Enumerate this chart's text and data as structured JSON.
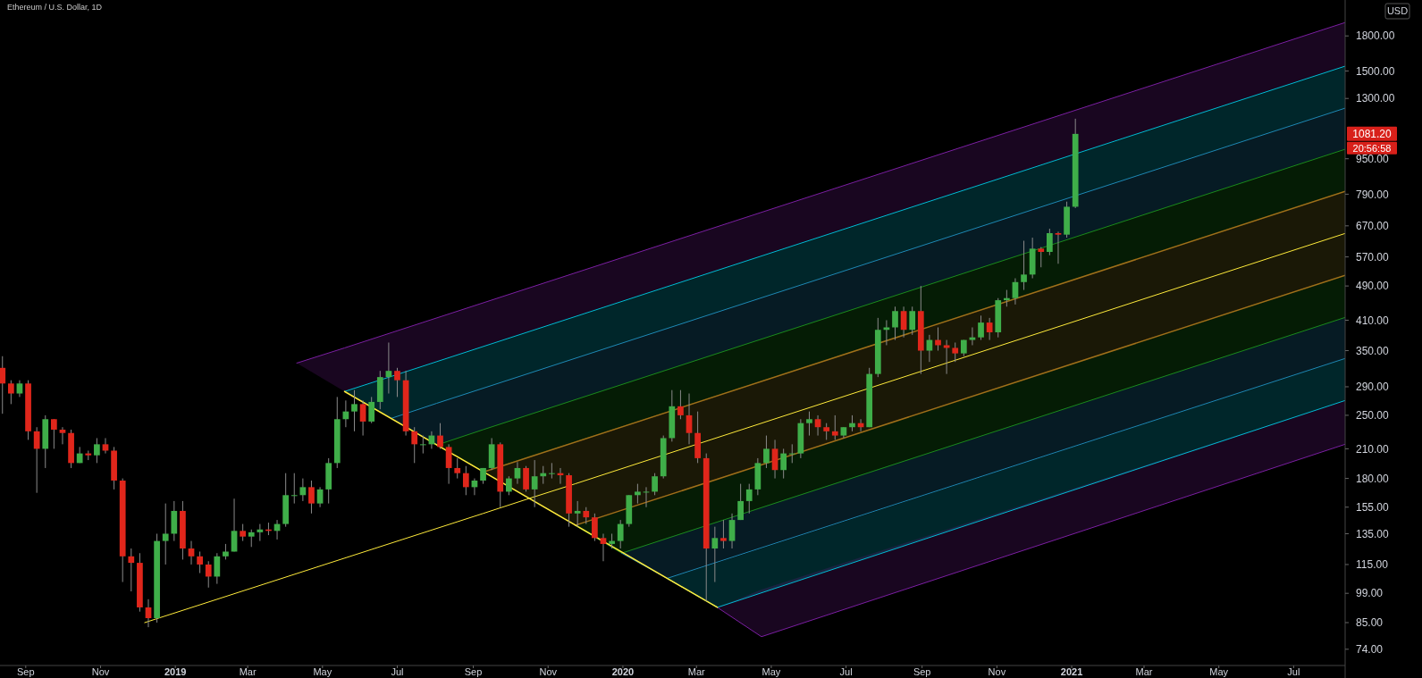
{
  "chart_data": {
    "type": "candlestick",
    "title": "Ethereum / U.S. Dollar, 1D",
    "log": true,
    "xlim": [
      "2018-08-11",
      "2021-08-12"
    ],
    "ylim": [
      68,
      2170
    ],
    "xticks": [
      {
        "value": "2018-09-01",
        "label": "Sep"
      },
      {
        "value": "2018-11-01",
        "label": "Nov"
      },
      {
        "value": "2019-01-01",
        "label": "2019"
      },
      {
        "value": "2019-03-01",
        "label": "Mar"
      },
      {
        "value": "2019-05-01",
        "label": "May"
      },
      {
        "value": "2019-07-01",
        "label": "Jul"
      },
      {
        "value": "2019-09-01",
        "label": "Sep"
      },
      {
        "value": "2019-11-01",
        "label": "Nov"
      },
      {
        "value": "2020-01-01",
        "label": "2020"
      },
      {
        "value": "2020-03-01",
        "label": "Mar"
      },
      {
        "value": "2020-05-01",
        "label": "May"
      },
      {
        "value": "2020-07-01",
        "label": "Jul"
      },
      {
        "value": "2020-09-01",
        "label": "Sep"
      },
      {
        "value": "2020-11-01",
        "label": "Nov"
      },
      {
        "value": "2021-01-01",
        "label": "2021"
      },
      {
        "value": "2021-03-01",
        "label": "Mar"
      },
      {
        "value": "2021-05-01",
        "label": "May"
      },
      {
        "value": "2021-07-01",
        "label": "Jul"
      }
    ],
    "yticks": [
      {
        "value": 74,
        "label": "74.00"
      },
      {
        "value": 85,
        "label": "85.00"
      },
      {
        "value": 99,
        "label": "99.00"
      },
      {
        "value": 115,
        "label": "115.00"
      },
      {
        "value": 135,
        "label": "135.00"
      },
      {
        "value": 155,
        "label": "155.00"
      },
      {
        "value": 180,
        "label": "180.00"
      },
      {
        "value": 210,
        "label": "210.00"
      },
      {
        "value": 250,
        "label": "250.00"
      },
      {
        "value": 290,
        "label": "290.00"
      },
      {
        "value": 350,
        "label": "350.00"
      },
      {
        "value": 410,
        "label": "410.00"
      },
      {
        "value": 490,
        "label": "490.00"
      },
      {
        "value": 570,
        "label": "570.00"
      },
      {
        "value": 670,
        "label": "670.00"
      },
      {
        "value": 790,
        "label": "790.00"
      },
      {
        "value": 950,
        "label": "950.00"
      },
      {
        "value": 1300,
        "label": "1300.00"
      },
      {
        "value": 1500,
        "label": "1500.00"
      },
      {
        "value": 1800,
        "label": "1800.00"
      }
    ],
    "x": [
      "2018-08-13",
      "2018-08-20",
      "2018-08-27",
      "2018-09-03",
      "2018-09-10",
      "2018-09-17",
      "2018-09-24",
      "2018-10-01",
      "2018-10-08",
      "2018-10-15",
      "2018-10-22",
      "2018-10-29",
      "2018-11-05",
      "2018-11-12",
      "2018-11-19",
      "2018-11-26",
      "2018-12-03",
      "2018-12-10",
      "2018-12-17",
      "2018-12-24",
      "2018-12-31",
      "2019-01-07",
      "2019-01-14",
      "2019-01-21",
      "2019-01-28",
      "2019-02-04",
      "2019-02-11",
      "2019-02-18",
      "2019-02-25",
      "2019-03-04",
      "2019-03-11",
      "2019-03-18",
      "2019-03-25",
      "2019-04-01",
      "2019-04-08",
      "2019-04-15",
      "2019-04-22",
      "2019-04-29",
      "2019-05-06",
      "2019-05-13",
      "2019-05-20",
      "2019-05-27",
      "2019-06-03",
      "2019-06-10",
      "2019-06-17",
      "2019-06-24",
      "2019-07-01",
      "2019-07-08",
      "2019-07-15",
      "2019-07-22",
      "2019-07-29",
      "2019-08-05",
      "2019-08-12",
      "2019-08-19",
      "2019-08-26",
      "2019-09-02",
      "2019-09-09",
      "2019-09-16",
      "2019-09-23",
      "2019-09-30",
      "2019-10-07",
      "2019-10-14",
      "2019-10-21",
      "2019-10-28",
      "2019-11-04",
      "2019-11-11",
      "2019-11-18",
      "2019-11-25",
      "2019-12-02",
      "2019-12-09",
      "2019-12-16",
      "2019-12-23",
      "2019-12-30",
      "2020-01-06",
      "2020-01-13",
      "2020-01-20",
      "2020-01-27",
      "2020-02-03",
      "2020-02-10",
      "2020-02-17",
      "2020-02-24",
      "2020-03-02",
      "2020-03-09",
      "2020-03-16",
      "2020-03-23",
      "2020-03-30",
      "2020-04-06",
      "2020-04-13",
      "2020-04-20",
      "2020-04-27",
      "2020-05-04",
      "2020-05-11",
      "2020-05-18",
      "2020-05-25",
      "2020-06-01",
      "2020-06-08",
      "2020-06-15",
      "2020-06-22",
      "2020-06-29",
      "2020-07-06",
      "2020-07-13",
      "2020-07-20",
      "2020-07-27",
      "2020-08-03",
      "2020-08-10",
      "2020-08-17",
      "2020-08-24",
      "2020-08-31",
      "2020-09-07",
      "2020-09-14",
      "2020-09-21",
      "2020-09-28",
      "2020-10-05",
      "2020-10-12",
      "2020-10-19",
      "2020-10-26",
      "2020-11-02",
      "2020-11-09",
      "2020-11-16",
      "2020-11-23",
      "2020-11-30",
      "2020-12-07",
      "2020-12-14",
      "2020-12-21",
      "2020-12-28",
      "2021-01-04"
    ],
    "ohlc": [
      [
        320,
        340,
        252,
        295
      ],
      [
        295,
        300,
        265,
        280
      ],
      [
        280,
        300,
        275,
        295
      ],
      [
        295,
        300,
        220,
        230
      ],
      [
        230,
        235,
        167,
        210
      ],
      [
        210,
        250,
        190,
        245
      ],
      [
        245,
        245,
        210,
        232
      ],
      [
        232,
        235,
        215,
        228
      ],
      [
        228,
        232,
        190,
        195
      ],
      [
        195,
        212,
        195,
        205
      ],
      [
        205,
        208,
        198,
        203
      ],
      [
        203,
        222,
        195,
        215
      ],
      [
        215,
        222,
        205,
        208
      ],
      [
        208,
        212,
        170,
        178
      ],
      [
        178,
        180,
        105,
        120
      ],
      [
        120,
        125,
        100,
        116
      ],
      [
        116,
        122,
        90,
        92
      ],
      [
        92,
        96,
        83,
        87
      ],
      [
        87,
        135,
        85,
        130
      ],
      [
        130,
        158,
        115,
        135
      ],
      [
        135,
        160,
        130,
        152
      ],
      [
        152,
        160,
        118,
        125
      ],
      [
        125,
        130,
        115,
        120
      ],
      [
        120,
        123,
        110,
        115
      ],
      [
        115,
        117,
        102,
        108
      ],
      [
        108,
        122,
        104,
        120
      ],
      [
        120,
        128,
        118,
        123
      ],
      [
        123,
        162,
        123,
        137
      ],
      [
        137,
        142,
        130,
        133
      ],
      [
        133,
        138,
        126,
        136
      ],
      [
        136,
        142,
        130,
        138
      ],
      [
        138,
        143,
        134,
        137
      ],
      [
        137,
        145,
        131,
        142
      ],
      [
        142,
        185,
        140,
        165
      ],
      [
        165,
        185,
        158,
        165
      ],
      [
        165,
        180,
        160,
        172
      ],
      [
        172,
        178,
        150,
        158
      ],
      [
        158,
        172,
        155,
        170
      ],
      [
        170,
        200,
        158,
        195
      ],
      [
        195,
        275,
        190,
        245
      ],
      [
        245,
        270,
        235,
        255
      ],
      [
        255,
        285,
        230,
        265
      ],
      [
        265,
        270,
        225,
        242
      ],
      [
        242,
        275,
        240,
        268
      ],
      [
        268,
        315,
        258,
        305
      ],
      [
        305,
        365,
        280,
        315
      ],
      [
        315,
        320,
        275,
        300
      ],
      [
        300,
        315,
        225,
        230
      ],
      [
        230,
        235,
        195,
        215
      ],
      [
        215,
        225,
        205,
        215
      ],
      [
        215,
        230,
        210,
        225
      ],
      [
        225,
        240,
        210,
        212
      ],
      [
        212,
        215,
        175,
        190
      ],
      [
        190,
        200,
        180,
        185
      ],
      [
        185,
        192,
        165,
        172
      ],
      [
        172,
        180,
        165,
        178
      ],
      [
        178,
        190,
        175,
        190
      ],
      [
        190,
        222,
        188,
        215
      ],
      [
        215,
        217,
        155,
        168
      ],
      [
        168,
        182,
        165,
        180
      ],
      [
        180,
        196,
        175,
        190
      ],
      [
        190,
        192,
        168,
        170
      ],
      [
        170,
        198,
        155,
        182
      ],
      [
        182,
        192,
        175,
        185
      ],
      [
        185,
        195,
        180,
        185
      ],
      [
        185,
        190,
        175,
        183
      ],
      [
        183,
        185,
        140,
        150
      ],
      [
        150,
        160,
        140,
        152
      ],
      [
        152,
        155,
        142,
        147
      ],
      [
        147,
        150,
        130,
        132
      ],
      [
        132,
        135,
        117,
        128
      ],
      [
        128,
        135,
        125,
        130
      ],
      [
        130,
        145,
        125,
        142
      ],
      [
        142,
        165,
        140,
        165
      ],
      [
        165,
        175,
        158,
        168
      ],
      [
        168,
        172,
        155,
        168
      ],
      [
        168,
        185,
        165,
        182
      ],
      [
        182,
        225,
        180,
        222
      ],
      [
        222,
        285,
        218,
        262
      ],
      [
        262,
        285,
        245,
        250
      ],
      [
        250,
        280,
        215,
        228
      ],
      [
        228,
        255,
        195,
        200
      ],
      [
        200,
        205,
        95,
        125
      ],
      [
        125,
        140,
        105,
        132
      ],
      [
        132,
        145,
        125,
        130
      ],
      [
        130,
        150,
        125,
        145
      ],
      [
        145,
        175,
        145,
        160
      ],
      [
        160,
        175,
        150,
        170
      ],
      [
        170,
        200,
        165,
        195
      ],
      [
        195,
        225,
        190,
        210
      ],
      [
        210,
        220,
        180,
        188
      ],
      [
        188,
        210,
        180,
        205
      ],
      [
        205,
        215,
        195,
        205
      ],
      [
        205,
        245,
        200,
        240
      ],
      [
        240,
        255,
        225,
        245
      ],
      [
        245,
        250,
        225,
        235
      ],
      [
        235,
        240,
        220,
        230
      ],
      [
        230,
        250,
        220,
        225
      ],
      [
        225,
        235,
        222,
        235
      ],
      [
        235,
        250,
        230,
        240
      ],
      [
        240,
        245,
        230,
        235
      ],
      [
        235,
        320,
        235,
        310
      ],
      [
        310,
        415,
        305,
        390
      ],
      [
        390,
        410,
        360,
        395
      ],
      [
        395,
        440,
        370,
        430
      ],
      [
        430,
        440,
        375,
        390
      ],
      [
        390,
        440,
        380,
        430
      ],
      [
        430,
        490,
        310,
        350
      ],
      [
        350,
        380,
        330,
        370
      ],
      [
        370,
        395,
        350,
        360
      ],
      [
        360,
        370,
        310,
        355
      ],
      [
        355,
        365,
        330,
        345
      ],
      [
        345,
        370,
        340,
        370
      ],
      [
        370,
        395,
        360,
        375
      ],
      [
        375,
        420,
        370,
        405
      ],
      [
        405,
        415,
        370,
        385
      ],
      [
        385,
        460,
        375,
        455
      ],
      [
        455,
        480,
        440,
        460
      ],
      [
        460,
        510,
        445,
        500
      ],
      [
        500,
        620,
        480,
        520
      ],
      [
        520,
        630,
        510,
        595
      ],
      [
        595,
        600,
        540,
        585
      ],
      [
        585,
        660,
        575,
        645
      ],
      [
        645,
        650,
        550,
        640
      ],
      [
        640,
        760,
        630,
        740
      ],
      [
        740,
        1170,
        735,
        1081.2
      ]
    ],
    "series": [
      {
        "type": "line",
        "color": "#7b1fa2",
        "x": [
          "2019-04-10",
          "2019-05-19",
          "2021-08-12"
        ],
        "values": [
          328,
          355,
          1930
        ],
        "upper": [
          328,
          355,
          1930
        ],
        "lower": [
          328,
          283,
          1538
        ]
      },
      {
        "type": "line",
        "color": "#00bcd4",
        "x": [
          "2019-05-19",
          "2019-06-26",
          "2021-08-12"
        ],
        "values": [
          283,
          306,
          1538
        ],
        "upper": [
          283,
          306,
          1538
        ],
        "lower": [
          283,
          246,
          1236
        ]
      },
      {
        "type": "line",
        "color": "#1e88b4",
        "x": [
          "2019-06-26",
          "2019-08-02",
          "2021-08-12"
        ],
        "values": [
          246,
          266,
          1236
        ],
        "upper": [
          246,
          266,
          1236
        ],
        "lower": [
          246,
          214,
          998
        ]
      },
      {
        "type": "line",
        "color": "#1b8a1b",
        "x": [
          "2019-08-02",
          "2019-09-09",
          "2021-08-12"
        ],
        "values": [
          214,
          232,
          998
        ],
        "upper": [
          214,
          232,
          998
        ],
        "lower": [
          214,
          186,
          802
        ]
      },
      {
        "type": "line",
        "color": "#a0701a",
        "x": [
          "2019-09-09",
          "2021-08-12"
        ],
        "values": [
          186,
          802
        ]
      },
      {
        "type": "line",
        "color": "#a0701a",
        "x": [
          "2019-11-23",
          "2021-08-12"
        ],
        "values": [
          141,
          518
        ]
      },
      {
        "type": "line",
        "color": "#1b8a1b",
        "x": [
          "2019-11-23",
          "2019-12-31",
          "2021-08-12"
        ],
        "values": [
          141,
          122,
          416
        ],
        "upper": [
          141,
          152,
          518
        ],
        "lower": [
          141,
          122,
          416
        ]
      },
      {
        "type": "line",
        "color": "#1e88b4",
        "x": [
          "2019-12-31",
          "2020-02-06",
          "2021-08-12"
        ],
        "values": [
          122,
          107,
          336
        ],
        "upper": [
          122,
          132,
          416
        ],
        "lower": [
          122,
          107,
          336
        ]
      },
      {
        "type": "line",
        "color": "#00bcd4",
        "x": [
          "2020-02-06",
          "2020-03-18",
          "2021-08-12"
        ],
        "values": [
          107,
          92,
          270
        ],
        "upper": [
          107,
          116,
          336
        ],
        "lower": [
          107,
          92,
          270
        ]
      },
      {
        "type": "line",
        "color": "#7b1fa2",
        "x": [
          "2020-03-18",
          "2020-04-23",
          "2021-08-12"
        ],
        "values": [
          92,
          79,
          215
        ],
        "upper": [
          92,
          101,
          270
        ],
        "lower": [
          92,
          79,
          215
        ]
      },
      {
        "type": "line",
        "color": "#ffeb3b",
        "x": [
          "2018-12-07",
          "2019-09-09",
          "2019-10-16",
          "2019-11-23",
          "2021-08-12"
        ],
        "values": [
          85,
          150,
          162,
          175,
          644
        ],
        "upper": [
          null,
          186,
          202,
          218,
          802
        ],
        "lower": [
          null,
          186,
          162,
          141,
          518
        ]
      },
      {
        "type": "line",
        "color": "#ffeb3b",
        "x": [
          "2019-05-19",
          "2020-03-18"
        ],
        "values": [
          283,
          92
        ]
      }
    ],
    "annotations": [
      "1081.20",
      "20:56:58",
      "USD"
    ]
  }
}
